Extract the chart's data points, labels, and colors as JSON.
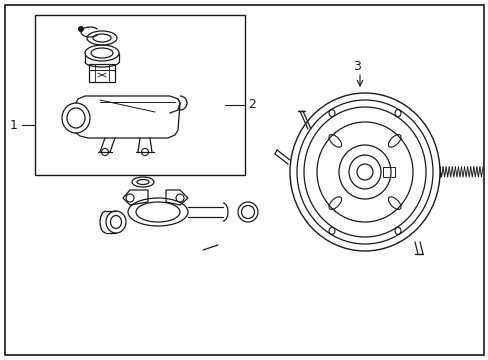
{
  "bg_color": "#ffffff",
  "line_color": "#1a1a1a",
  "label_1": "1",
  "label_2": "2",
  "label_3": "3"
}
